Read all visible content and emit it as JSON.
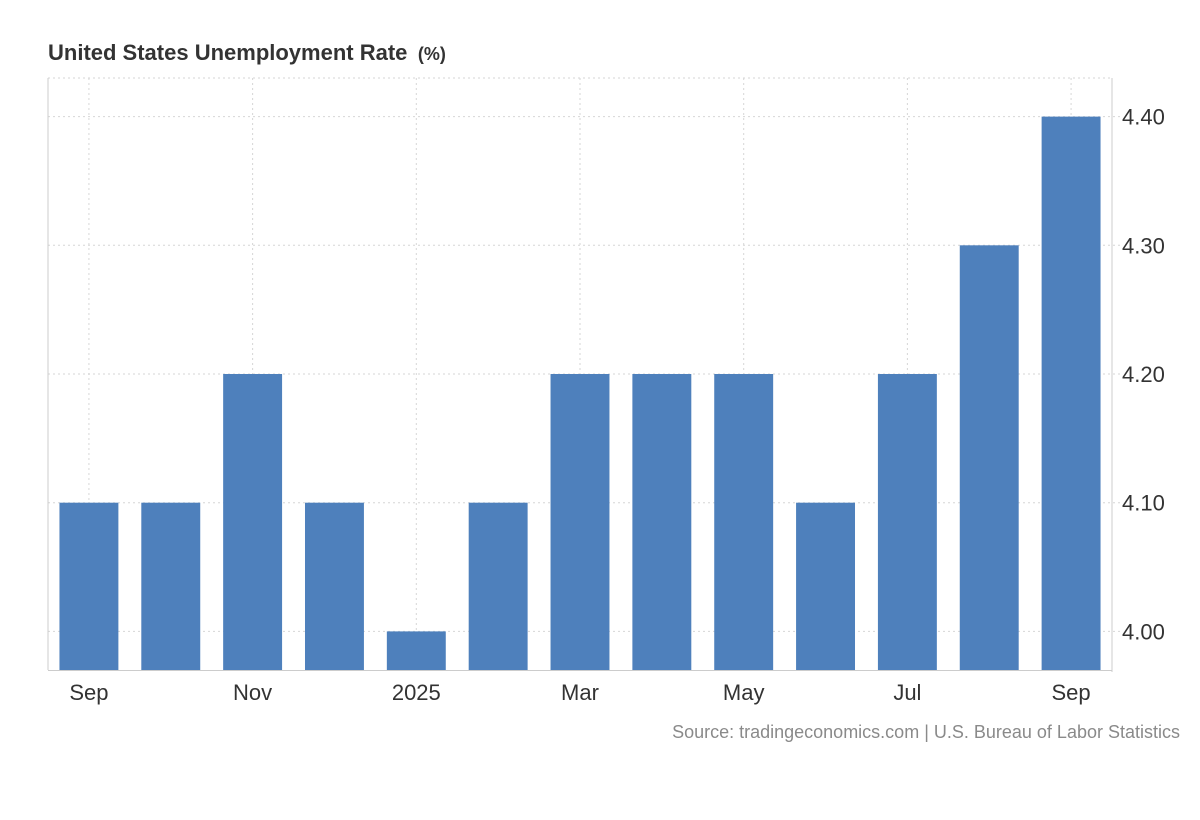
{
  "chart_data": {
    "type": "bar",
    "title": "United States Unemployment Rate",
    "unit": "(%)",
    "categories": [
      "Sep 2024",
      "Oct 2024",
      "Nov 2024",
      "Dec 2024",
      "Jan 2025",
      "Feb 2025",
      "Mar 2025",
      "Apr 2025",
      "May 2025",
      "Jun 2025",
      "Jul 2025",
      "Aug 2025",
      "Sep 2025"
    ],
    "values": [
      4.1,
      4.1,
      4.2,
      4.1,
      4.0,
      4.1,
      4.2,
      4.2,
      4.2,
      4.1,
      4.2,
      4.3,
      4.4
    ],
    "x_tick_labels": [
      {
        "category_index": 0,
        "label": "Sep"
      },
      {
        "category_index": 2,
        "label": "Nov"
      },
      {
        "category_index": 4,
        "label": "2025"
      },
      {
        "category_index": 6,
        "label": "Mar"
      },
      {
        "category_index": 8,
        "label": "May"
      },
      {
        "category_index": 10,
        "label": "Jul"
      },
      {
        "category_index": 12,
        "label": "Sep"
      }
    ],
    "y_ticks": [
      {
        "value": 4.0,
        "label": "4.00"
      },
      {
        "value": 4.1,
        "label": "4.10"
      },
      {
        "value": 4.2,
        "label": "4.20"
      },
      {
        "value": 4.3,
        "label": "4.30"
      },
      {
        "value": 4.4,
        "label": "4.40"
      }
    ],
    "ylim": [
      3.97,
      4.43
    ],
    "y_axis_position": "right",
    "grid": true,
    "bar_color": "#4e80bc",
    "grid_color": "#d6d6d6",
    "axis_color": "#cccccc",
    "source": "Source: tradingeconomics.com | U.S. Bureau of Labor Statistics"
  }
}
